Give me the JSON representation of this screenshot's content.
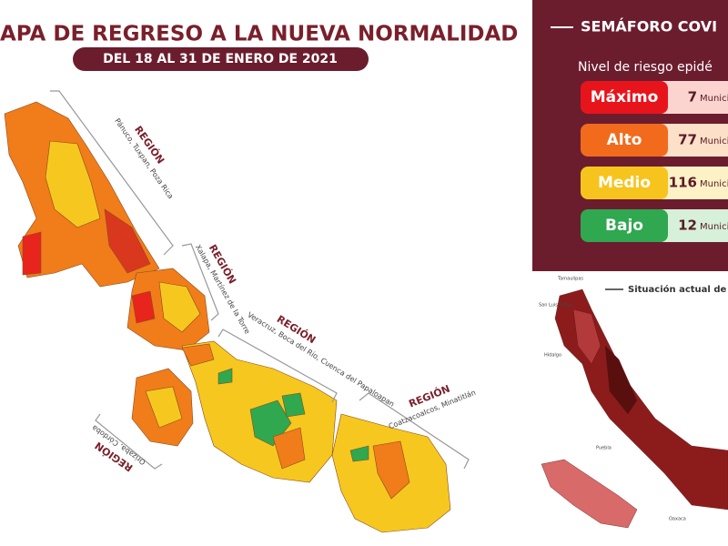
{
  "header": {
    "title": "APA DE REGRESO A LA NUEVA NORMALIDAD",
    "subtitle": "DEL 18 AL 31 DE ENERO DE 2021"
  },
  "regions": [
    {
      "heading": "REGIÓN",
      "cities": "Pánuco, Tuxpan, Poza Rica"
    },
    {
      "heading": "REGIÓN",
      "cities": "Xalapa, Martínez de la Torre"
    },
    {
      "heading": "REGIÓN",
      "cities": "Veracruz, Boca del Río, Cuenca del Papaloapan"
    },
    {
      "heading": "REGIÓN",
      "cities": "Coatzacoalcos, Minatitlán"
    },
    {
      "heading": "REGIÓN",
      "cities": "Orizaba, Córdoba"
    }
  ],
  "legend": {
    "title": "SEMÁFORO COVI",
    "subtitle": "Nivel de riesgo epidé",
    "levels": [
      {
        "label": "Máximo",
        "count": 7,
        "unit": "Municipios"
      },
      {
        "label": "Alto",
        "count": 77,
        "unit": "Municipios"
      },
      {
        "label": "Medio",
        "count": 116,
        "unit": "Municipios"
      },
      {
        "label": "Bajo",
        "count": 12,
        "unit": "Municipios"
      }
    ]
  },
  "inset": {
    "title": "Situación actual de c",
    "places": [
      "Tamaulipas",
      "San Luis Potosí",
      "Hidalgo",
      "Puebla",
      "Oaxaca"
    ]
  }
}
